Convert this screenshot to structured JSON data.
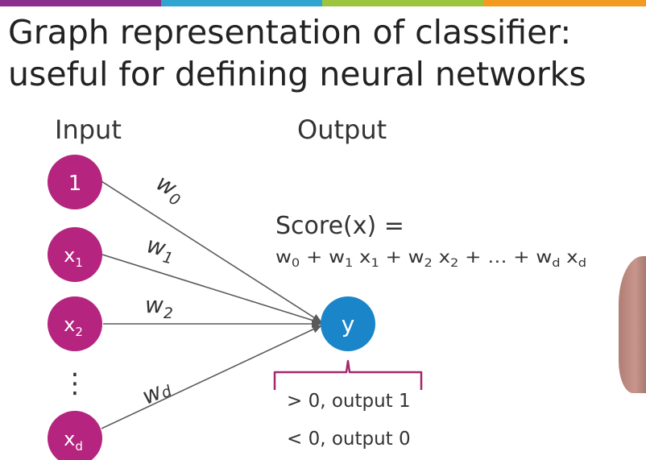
{
  "title": {
    "line1": "Graph representation of classifier:",
    "line2": "useful for defining neural networks"
  },
  "labels": {
    "input": "Input",
    "output": "Output"
  },
  "nodes": {
    "input_1": {
      "base": "1",
      "sub": ""
    },
    "input_x1": {
      "base": "x",
      "sub": "1"
    },
    "input_x2": {
      "base": "x",
      "sub": "2"
    },
    "ellipsis": "⋮",
    "input_xd": {
      "base": "x",
      "sub": "d"
    },
    "output_y": "y"
  },
  "weights": {
    "w0": {
      "base": "w",
      "sub": "0"
    },
    "w1": {
      "base": "w",
      "sub": "1"
    },
    "w2": {
      "base": "w",
      "sub": "2"
    },
    "wd": {
      "base": "w",
      "sub": "d"
    }
  },
  "score": {
    "lhs": "Score(x) =",
    "equation": [
      {
        "base": "w",
        "sub": "0"
      },
      {
        "base": " + w",
        "sub": "1"
      },
      {
        "base": " x",
        "sub": "1"
      },
      {
        "base": " + w",
        "sub": "2"
      },
      {
        "base": " x",
        "sub": "2"
      },
      {
        "base": " + … + w",
        "sub": "d"
      },
      {
        "base": " x",
        "sub": "d"
      }
    ]
  },
  "rules": {
    "positive": "> 0, output 1",
    "negative": "< 0, output 0"
  },
  "colors": {
    "input_node": "#b5247e",
    "output_node": "#1a85c9",
    "edge": "#5a5a5a",
    "brace": "#a4276e",
    "bar": [
      "#8b2f8f",
      "#2fa5cf",
      "#9bc53d",
      "#f39a21"
    ]
  }
}
